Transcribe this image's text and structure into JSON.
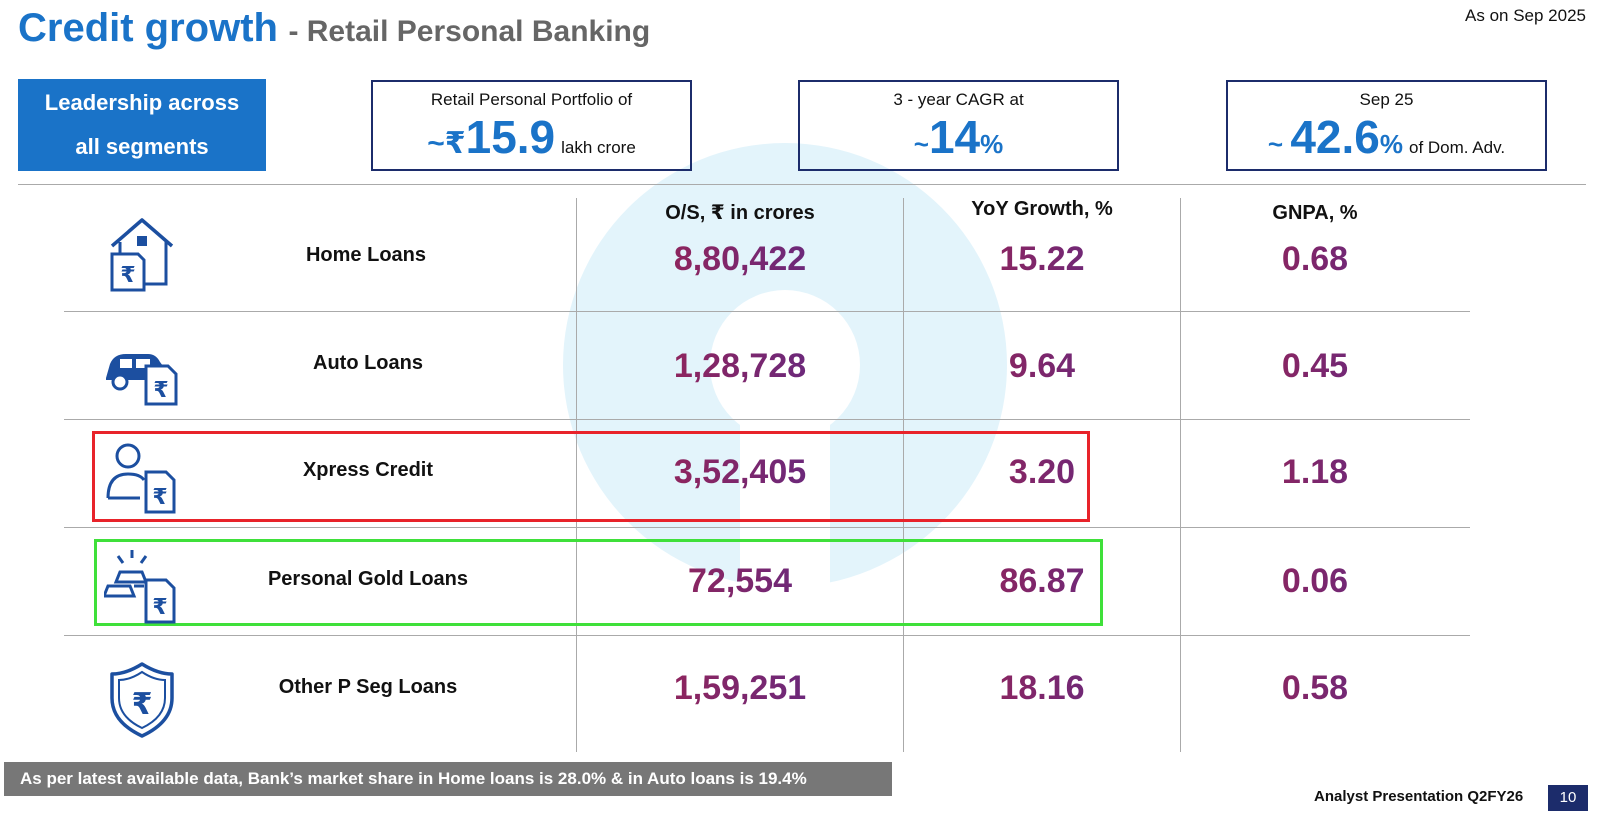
{
  "header": {
    "title": "Credit growth",
    "subtitle": "- Retail Personal Banking",
    "as_on": "As on Sep 2025"
  },
  "leadership": {
    "line1": "Leadership across",
    "line2": "all segments"
  },
  "kpis": [
    {
      "caption": "Retail Personal Portfolio of",
      "prefix": "~₹",
      "value": "15.9",
      "suffix": "",
      "unit": "lakh crore"
    },
    {
      "caption": "3 - year CAGR at",
      "prefix": "~",
      "value": "14",
      "suffix": "%",
      "unit": ""
    },
    {
      "caption": "Sep 25",
      "prefix": "~ ",
      "value": "42.6",
      "suffix": "%",
      "unit": "of Dom. Adv."
    }
  ],
  "table": {
    "columns": [
      "O/S, ₹ in crores",
      "YoY Growth, %",
      "GNPA, %"
    ],
    "rows": [
      {
        "label": "Home Loans",
        "icon": "home-loan-icon",
        "os": "8,80,422",
        "yoy": "15.22",
        "gnpa": "0.68"
      },
      {
        "label": "Auto Loans",
        "icon": "car-loan-icon",
        "os": "1,28,728",
        "yoy": "9.64",
        "gnpa": "0.45"
      },
      {
        "label": "Xpress Credit",
        "icon": "person-loan-icon",
        "os": "3,52,405",
        "yoy": "3.20",
        "gnpa": "1.18"
      },
      {
        "label": "Personal Gold Loans",
        "icon": "gold-loan-icon",
        "os": "72,554",
        "yoy": "86.87",
        "gnpa": "0.06"
      },
      {
        "label": "Other P Seg Loans",
        "icon": "rupee-shield-icon",
        "os": "1,59,251",
        "yoy": "18.16",
        "gnpa": "0.58"
      }
    ]
  },
  "footer": {
    "note": "As per latest available data, Bank’s market share in Home loans is 28.0% & in Auto loans is 19.4%",
    "presentation": "Analyst Presentation Q2FY26",
    "page": "10"
  },
  "colors": {
    "brand_blue": "#1a73c8",
    "navy": "#1c2c6b",
    "value_gradient_start": "#a0234e",
    "value_gradient_end": "#5a2a8a",
    "highlight_red": "#e8232a",
    "highlight_green": "#3fe03a"
  }
}
